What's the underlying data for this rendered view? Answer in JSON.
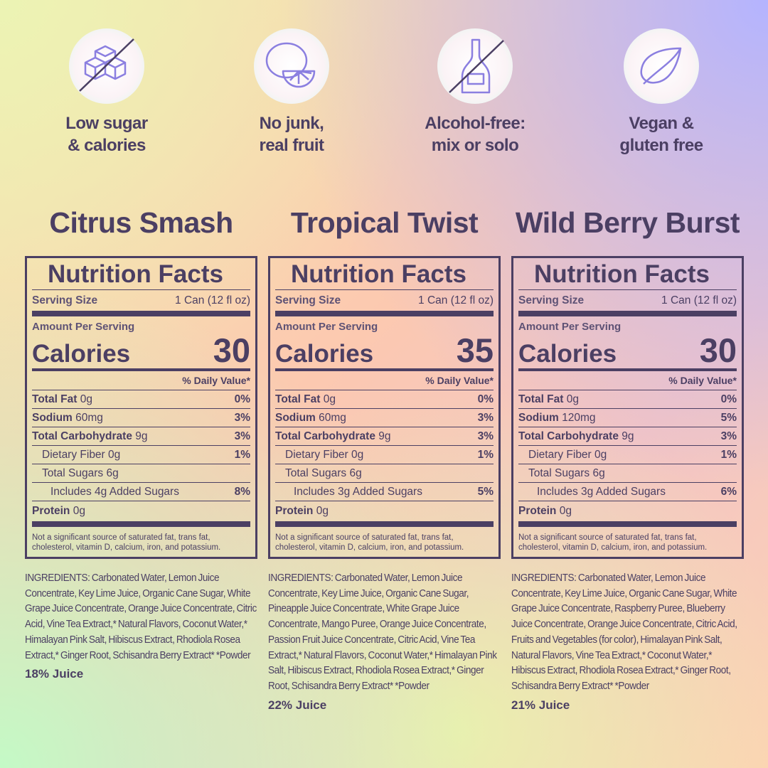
{
  "features": [
    {
      "lines": [
        "Low sugar",
        "& calories"
      ]
    },
    {
      "lines": [
        "No junk,",
        "real fruit"
      ]
    },
    {
      "lines": [
        "Alcohol-free:",
        "mix or solo"
      ]
    },
    {
      "lines": [
        "Vegan &",
        "gluten free"
      ]
    }
  ],
  "products": [
    {
      "name": "Citrus Smash",
      "nutrition": {
        "title": "Nutrition Facts",
        "serving_size_label": "Serving Size",
        "serving_size": "1 Can (12 fl oz)",
        "amount_per_serving": "Amount Per Serving",
        "calories_label": "Calories",
        "calories": 30,
        "daily_value_header": "% Daily Value*",
        "rows": [
          {
            "label": "Total Fat",
            "amount": "0g",
            "dv": "0%"
          },
          {
            "label": "Sodium",
            "amount": "60mg",
            "dv": "3%"
          },
          {
            "label": "Total Carbohydrate",
            "amount": "9g",
            "dv": "3%"
          },
          {
            "label": "Dietary Fiber 0g",
            "dv": "1%"
          },
          {
            "label": "Total Sugars 6g"
          },
          {
            "label": "Includes 4g Added Sugars",
            "dv": "8%"
          },
          {
            "label": "Protein",
            "amount": "0g"
          }
        ],
        "footnote": "Not a significant source of saturated fat, trans fat, cholesterol, vitamin D, calcium, iron, and potassium."
      },
      "ingredients": "INGREDIENTS: Carbonated Water, Lemon Juice Concentrate, Key Lime Juice, Organic Cane Sugar, White Grape Juice Concentrate, Orange Juice Concentrate, Citric Acid, Vine Tea Extract,* Natural Flavors, Coconut Water,* Himalayan Pink Salt, Hibiscus Extract, Rhodiola Rosea Extract,* Ginger Root, Schisandra Berry Extract* *Powder",
      "juice": "18% Juice"
    },
    {
      "name": "Tropical Twist",
      "nutrition": {
        "title": "Nutrition Facts",
        "serving_size_label": "Serving Size",
        "serving_size": "1 Can (12 fl oz)",
        "amount_per_serving": "Amount Per Serving",
        "calories_label": "Calories",
        "calories": 35,
        "daily_value_header": "% Daily Value*",
        "rows": [
          {
            "label": "Total Fat",
            "amount": "0g",
            "dv": "0%"
          },
          {
            "label": "Sodium",
            "amount": "60mg",
            "dv": "3%"
          },
          {
            "label": "Total Carbohydrate",
            "amount": "9g",
            "dv": "3%"
          },
          {
            "label": "Dietary Fiber 0g",
            "dv": "1%"
          },
          {
            "label": "Total Sugars 6g"
          },
          {
            "label": "Includes 3g Added Sugars",
            "dv": "5%"
          },
          {
            "label": "Protein",
            "amount": "0g"
          }
        ],
        "footnote": "Not a significant source of saturated fat, trans fat, cholesterol, vitamin D, calcium, iron, and potassium."
      },
      "ingredients": "INGREDIENTS: Carbonated Water, Lemon Juice Concentrate, Key Lime Juice, Organic Cane Sugar, Pineapple Juice Concentrate, White Grape Juice Concentrate, Mango Puree, Orange Juice Concentrate, Passion Fruit Juice Concentrate, Citric Acid, Vine Tea Extract,* Natural Flavors, Coconut Water,* Himalayan Pink Salt, Hibiscus Extract, Rhodiola Rosea Extract,* Ginger Root, Schisandra Berry Extract* *Powder",
      "juice": "22% Juice"
    },
    {
      "name": "Wild Berry Burst",
      "nutrition": {
        "title": "Nutrition Facts",
        "serving_size_label": "Serving Size",
        "serving_size": "1 Can (12 fl oz)",
        "amount_per_serving": "Amount Per Serving",
        "calories_label": "Calories",
        "calories": 30,
        "daily_value_header": "% Daily Value*",
        "rows": [
          {
            "label": "Total Fat",
            "amount": "0g",
            "dv": "0%"
          },
          {
            "label": "Sodium",
            "amount": "120mg",
            "dv": "5%"
          },
          {
            "label": "Total Carbohydrate",
            "amount": "9g",
            "dv": "3%"
          },
          {
            "label": "Dietary Fiber 0g",
            "dv": "1%"
          },
          {
            "label": "Total Sugars 6g"
          },
          {
            "label": "Includes 3g Added Sugars",
            "dv": "6%"
          },
          {
            "label": "Protein",
            "amount": "0g"
          }
        ],
        "footnote": "Not a significant source of saturated fat, trans fat, cholesterol, vitamin D, calcium, iron, and potassium."
      },
      "ingredients": "INGREDIENTS: Carbonated Water, Lemon Juice Concentrate, Key Lime Juice, Organic Cane Sugar, White Grape Juice Concentrate, Raspberry Puree, Blueberry Juice Concentrate, Orange Juice Concentrate, Citric Acid, Fruits and Vegetables (for color), Himalayan Pink Salt, Natural Flavors, Vine Tea Extract,* Coconut Water,* Hibiscus Extract, Rhodiola Rosea Extract,* Ginger Root, Schisandra Berry Extract* *Powder",
      "juice": "21% Juice"
    }
  ]
}
